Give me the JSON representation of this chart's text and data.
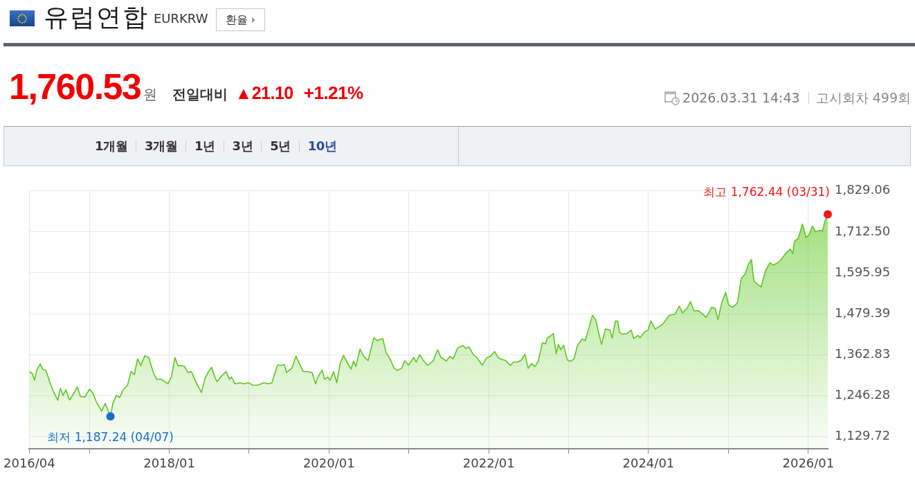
{
  "chart_data": {
    "type": "area",
    "title": "유럽연합",
    "subtitle": "EURKRW",
    "annotations": [
      "환율",
      "1,760.53",
      "원",
      "전일대비",
      "▲21.10",
      "+1.21%",
      "2026.03.31 14:43",
      "고시회차 499회",
      "1개월",
      "3개월",
      "1년",
      "3년",
      "5년",
      "10년",
      {
        "text": "최고 1,762.44 (03/31)",
        "x": "2026-03-31",
        "y": 1762.44
      },
      {
        "text": "최저 1,187.24 (04/07)",
        "x": "2017-04-07",
        "y": 1187.24
      }
    ],
    "color": "#5cc81e",
    "x": [
      "2016-04-01",
      "2016-04-15",
      "2016-04-25",
      "2016-05-05",
      "2016-05-21",
      "2016-05-31",
      "2016-06-15",
      "2016-06-26",
      "2016-07-06",
      "2016-07-21",
      "2016-08-09",
      "2016-08-21",
      "2016-09-02",
      "2016-09-15",
      "2016-10-01",
      "2016-10-16",
      "2016-11-06",
      "2016-11-21",
      "2016-12-11",
      "2017-01-01",
      "2017-01-16",
      "2017-02-01",
      "2017-02-26",
      "2017-03-14",
      "2017-04-07",
      "2017-04-18",
      "2017-05-04",
      "2017-05-19",
      "2017-06-04",
      "2017-06-24",
      "2017-07-10",
      "2017-07-25",
      "2017-08-09",
      "2017-08-24",
      "2017-09-11",
      "2017-09-29",
      "2017-10-20",
      "2017-11-04",
      "2017-11-25",
      "2017-12-25",
      "2018-01-10",
      "2018-01-27",
      "2018-02-09",
      "2018-02-24",
      "2018-03-12",
      "2018-03-27",
      "2018-04-12",
      "2018-05-02",
      "2018-05-28",
      "2018-06-12",
      "2018-06-27",
      "2018-07-13",
      "2018-07-28",
      "2018-08-07",
      "2018-08-28",
      "2018-09-17",
      "2018-10-03",
      "2018-10-13",
      "2018-10-28",
      "2018-11-18",
      "2018-12-08",
      "2018-12-29",
      "2019-01-18",
      "2019-02-08",
      "2019-03-10",
      "2019-03-31",
      "2019-04-15",
      "2019-05-11",
      "2019-05-26",
      "2019-06-11",
      "2019-06-21",
      "2019-07-16",
      "2019-08-03",
      "2019-08-21",
      "2019-09-05",
      "2019-09-26",
      "2019-10-16",
      "2019-11-01",
      "2019-11-11",
      "2019-12-01",
      "2019-12-12",
      "2019-12-27",
      "2020-01-06",
      "2020-01-22",
      "2020-02-06",
      "2020-02-21",
      "2020-03-08",
      "2020-03-23",
      "2020-04-11",
      "2020-04-23",
      "2020-05-03",
      "2020-05-22",
      "2020-06-08",
      "2020-06-28",
      "2020-07-24",
      "2020-08-09",
      "2020-09-03",
      "2020-09-18",
      "2020-10-09",
      "2020-10-24",
      "2020-11-08",
      "2020-11-29",
      "2020-12-12",
      "2020-12-30",
      "2021-01-22",
      "2021-02-03",
      "2021-02-19",
      "2021-03-06",
      "2021-03-27",
      "2021-04-21",
      "2021-05-12",
      "2021-05-27",
      "2021-06-21",
      "2021-07-07",
      "2021-07-22",
      "2021-08-12",
      "2021-09-06",
      "2021-09-17",
      "2021-10-02",
      "2021-10-22",
      "2021-11-07",
      "2021-12-02",
      "2021-12-23",
      "2022-01-07",
      "2022-01-28",
      "2022-02-12",
      "2022-02-27",
      "2022-03-20",
      "2022-04-09",
      "2022-04-24",
      "2022-05-15",
      "2022-05-30",
      "2022-06-15",
      "2022-06-30",
      "2022-07-15",
      "2022-07-31",
      "2022-08-15",
      "2022-09-03",
      "2022-09-18",
      "2022-09-25",
      "2022-10-10",
      "2022-10-23",
      "2022-11-05",
      "2022-11-15",
      "2022-11-26",
      "2022-12-09",
      "2022-12-26",
      "2023-01-10",
      "2023-01-26",
      "2023-02-10",
      "2023-03-03",
      "2023-03-18",
      "2023-04-02",
      "2023-04-20",
      "2023-05-05",
      "2023-05-19",
      "2023-06-01",
      "2023-06-18",
      "2023-07-09",
      "2023-07-19",
      "2023-08-03",
      "2023-08-13",
      "2023-08-22",
      "2023-09-03",
      "2023-09-24",
      "2023-10-14",
      "2023-10-26",
      "2023-11-14",
      "2023-11-24",
      "2023-12-14",
      "2023-12-30",
      "2024-01-12",
      "2024-02-01",
      "2024-03-05",
      "2024-04-05",
      "2024-05-01",
      "2024-05-21",
      "2024-06-05",
      "2024-06-26",
      "2024-07-11",
      "2024-07-27",
      "2024-08-16",
      "2024-09-06",
      "2024-09-21",
      "2024-10-16",
      "2024-11-01",
      "2024-11-14",
      "2024-12-01",
      "2024-12-19",
      "2025-01-02",
      "2025-01-22",
      "2025-02-11",
      "2025-02-28",
      "2025-03-17",
      "2025-04-03",
      "2025-04-16",
      "2025-04-27",
      "2025-05-14",
      "2025-05-30",
      "2025-06-19",
      "2025-07-10",
      "2025-07-25",
      "2025-08-15",
      "2025-08-30",
      "2025-09-19",
      "2025-10-10",
      "2025-10-22",
      "2025-10-30",
      "2025-11-15",
      "2025-12-05",
      "2025-12-22",
      "2026-01-05",
      "2026-01-20",
      "2026-02-04",
      "2026-02-15",
      "2026-03-07",
      "2026-03-17",
      "2026-03-31"
    ],
    "values": [
      1314,
      1309,
      1290,
      1319,
      1337,
      1322,
      1319,
      1299,
      1280,
      1257,
      1233,
      1267,
      1247,
      1263,
      1234,
      1247,
      1271,
      1244,
      1242,
      1265,
      1254,
      1229,
      1202,
      1224,
      1187.24,
      1224,
      1247,
      1241,
      1263,
      1276,
      1315,
      1306,
      1351,
      1332,
      1360,
      1355,
      1312,
      1293,
      1293,
      1280,
      1299,
      1355,
      1332,
      1332,
      1329,
      1312,
      1315,
      1286,
      1255,
      1293,
      1312,
      1327,
      1299,
      1286,
      1302,
      1315,
      1293,
      1299,
      1280,
      1283,
      1280,
      1283,
      1276,
      1276,
      1283,
      1280,
      1283,
      1334,
      1332,
      1335,
      1312,
      1325,
      1359,
      1335,
      1315,
      1315,
      1312,
      1280,
      1299,
      1319,
      1293,
      1299,
      1290,
      1315,
      1283,
      1338,
      1361,
      1342,
      1322,
      1345,
      1329,
      1379,
      1358,
      1346,
      1411,
      1403,
      1409,
      1370,
      1348,
      1325,
      1318,
      1324,
      1346,
      1333,
      1355,
      1342,
      1363,
      1348,
      1332,
      1345,
      1377,
      1355,
      1345,
      1358,
      1351,
      1383,
      1389,
      1381,
      1385,
      1363,
      1355,
      1333,
      1355,
      1358,
      1372,
      1355,
      1350,
      1346,
      1332,
      1342,
      1342,
      1348,
      1364,
      1324,
      1338,
      1329,
      1344,
      1397,
      1394,
      1410,
      1416,
      1423,
      1366,
      1392,
      1377,
      1390,
      1348,
      1344,
      1351,
      1389,
      1407,
      1403,
      1436,
      1475,
      1462,
      1423,
      1392,
      1436,
      1433,
      1410,
      1459,
      1459,
      1426,
      1422,
      1423,
      1433,
      1409,
      1418,
      1411,
      1428,
      1433,
      1459,
      1436,
      1449,
      1475,
      1478,
      1501,
      1482,
      1496,
      1514,
      1488,
      1488,
      1478,
      1469,
      1498,
      1495,
      1462,
      1511,
      1540,
      1504,
      1498,
      1511,
      1579,
      1592,
      1621,
      1634,
      1573,
      1563,
      1556,
      1602,
      1625,
      1618,
      1625,
      1634,
      1651,
      1664,
      1651,
      1687,
      1693,
      1735,
      1696,
      1706,
      1729,
      1713,
      1716,
      1716,
      1742,
      1762.44
    ],
    "xlim": [
      "2016-04-01",
      "2026-03-31"
    ],
    "xticks": [
      {
        "value": "2016-04",
        "label": "2016/04"
      },
      {
        "value": "2017-01",
        "label": null
      },
      {
        "value": "2018-01",
        "label": "2018/01"
      },
      {
        "value": "2019-01",
        "label": null
      },
      {
        "value": "2020-01",
        "label": "2020/01"
      },
      {
        "value": "2021-01",
        "label": null
      },
      {
        "value": "2022-01",
        "label": "2022/01"
      },
      {
        "value": "2023-01",
        "label": null
      },
      {
        "value": "2024-01",
        "label": "2024/01"
      },
      {
        "value": "2025-01",
        "label": null
      },
      {
        "value": "2026-01",
        "label": "2026/01"
      }
    ],
    "ylim": [
      1095,
      1829.06
    ],
    "yticks": [
      {
        "value": 1129.72,
        "label": "1,129.72"
      },
      {
        "value": 1246.28,
        "label": "1,246.28"
      },
      {
        "value": 1362.83,
        "label": "1,362.83"
      },
      {
        "value": 1479.39,
        "label": "1,479.39"
      },
      {
        "value": 1595.95,
        "label": "1,595.95"
      },
      {
        "value": 1712.5,
        "label": "1,712.50"
      },
      {
        "value": 1829.06,
        "label": "1,829.06"
      }
    ],
    "grid": true
  }
}
